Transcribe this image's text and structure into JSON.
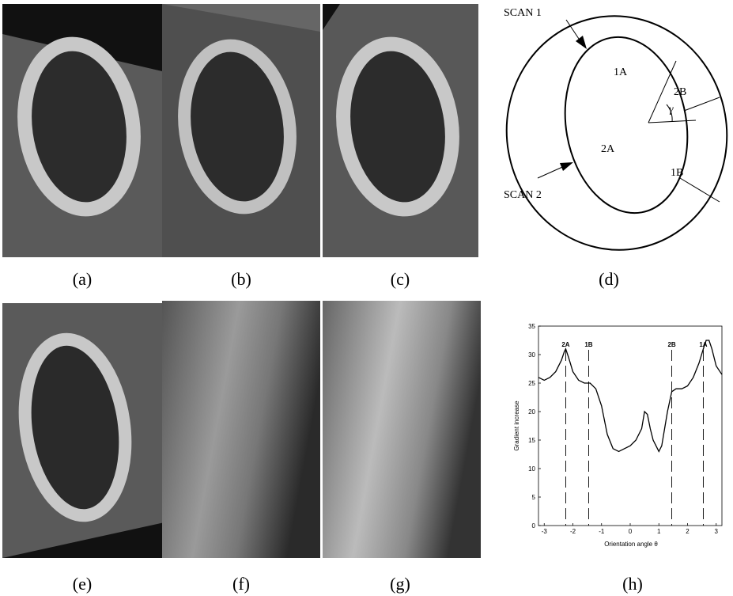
{
  "panels": {
    "labels": [
      "(a)",
      "(b)",
      "(c)",
      "(d)",
      "(e)",
      "(f)",
      "(g)",
      "(h)"
    ]
  },
  "diagram": {
    "scan1": "SCAN 1",
    "scan2": "SCAN 2",
    "points": [
      "1A",
      "2B",
      "2A",
      "1B"
    ],
    "angle": "γ"
  },
  "chart_data": {
    "type": "line",
    "ylabel": "Gradient increase",
    "xlabel": "Orientation angle θ",
    "xlim": [
      -3.2,
      3.2
    ],
    "ylim": [
      0,
      35
    ],
    "xticks": [
      -3,
      -2,
      -1,
      0,
      1,
      2,
      3
    ],
    "yticks": [
      0,
      5,
      10,
      15,
      20,
      25,
      30,
      35
    ],
    "x": [
      -3.2,
      -3.0,
      -2.8,
      -2.6,
      -2.4,
      -2.3,
      -2.25,
      -2.15,
      -2.0,
      -1.8,
      -1.6,
      -1.4,
      -1.2,
      -1.0,
      -0.8,
      -0.6,
      -0.4,
      -0.2,
      0,
      0.2,
      0.4,
      0.5,
      0.6,
      0.7,
      0.8,
      0.9,
      1.0,
      1.1,
      1.2,
      1.3,
      1.45,
      1.6,
      1.8,
      2.0,
      2.2,
      2.4,
      2.55,
      2.65,
      2.75,
      2.85,
      3.0,
      3.2
    ],
    "series": [
      {
        "color": "#000000",
        "values": [
          26,
          25.5,
          26,
          27,
          29,
          30.5,
          31,
          29.5,
          27,
          25.5,
          25,
          25,
          24,
          21,
          16,
          13.5,
          13,
          13.5,
          14,
          15,
          17,
          20,
          19.5,
          17,
          15,
          14,
          13,
          14,
          17,
          20,
          23.5,
          24,
          24,
          24.5,
          26,
          28.5,
          31,
          32.5,
          32.5,
          31,
          28,
          26.5
        ]
      }
    ],
    "annotations": [
      {
        "label": "2A",
        "x": -2.25
      },
      {
        "label": "1B",
        "x": -1.45
      },
      {
        "label": "2B",
        "x": 1.45
      },
      {
        "label": "1A",
        "x": 2.55
      }
    ]
  }
}
